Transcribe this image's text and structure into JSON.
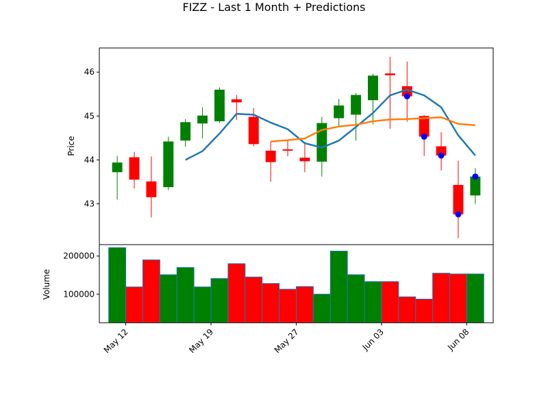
{
  "title": "FIZZ - Last 1 Month + Predictions",
  "chart_data": [
    {
      "type": "candlestick",
      "ylabel": "Price",
      "ylim": [
        42.07,
        46.55
      ],
      "yticks": [
        43,
        44,
        45,
        46
      ],
      "grid": false,
      "colors": {
        "up": "#008000",
        "down": "#ff0000"
      },
      "x": [
        0,
        1,
        2,
        3,
        4,
        5,
        6,
        7,
        8,
        9,
        10,
        11,
        12,
        13,
        14,
        15,
        16,
        17,
        18,
        19,
        20,
        21
      ],
      "ohlc": [
        {
          "o": 43.72,
          "h": 44.09,
          "l": 43.1,
          "c": 43.94
        },
        {
          "o": 44.06,
          "h": 44.18,
          "l": 43.35,
          "c": 43.55
        },
        {
          "o": 43.51,
          "h": 44.08,
          "l": 42.69,
          "c": 43.15
        },
        {
          "o": 43.38,
          "h": 44.53,
          "l": 43.31,
          "c": 44.42
        },
        {
          "o": 44.44,
          "h": 44.93,
          "l": 44.3,
          "c": 44.86
        },
        {
          "o": 44.83,
          "h": 45.2,
          "l": 44.49,
          "c": 45.01
        },
        {
          "o": 44.88,
          "h": 45.65,
          "l": 44.84,
          "c": 45.6
        },
        {
          "o": 45.38,
          "h": 45.48,
          "l": 44.91,
          "c": 45.31
        },
        {
          "o": 44.98,
          "h": 45.18,
          "l": 44.31,
          "c": 44.36
        },
        {
          "o": 44.21,
          "h": 44.42,
          "l": 43.5,
          "c": 43.95
        },
        {
          "o": 44.24,
          "h": 44.45,
          "l": 44.08,
          "c": 44.21
        },
        {
          "o": 44.05,
          "h": 44.38,
          "l": 43.72,
          "c": 43.97
        },
        {
          "o": 43.96,
          "h": 44.98,
          "l": 43.62,
          "c": 44.84
        },
        {
          "o": 44.95,
          "h": 45.39,
          "l": 44.77,
          "c": 45.24
        },
        {
          "o": 45.03,
          "h": 45.52,
          "l": 44.44,
          "c": 45.48
        },
        {
          "o": 45.36,
          "h": 45.96,
          "l": 44.81,
          "c": 45.92
        },
        {
          "o": 45.97,
          "h": 46.35,
          "l": 44.71,
          "c": 45.93
        },
        {
          "o": 45.68,
          "h": 46.24,
          "l": 44.87,
          "c": 45.45
        },
        {
          "o": 45.0,
          "h": 45.02,
          "l": 44.09,
          "c": 44.53
        },
        {
          "o": 44.31,
          "h": 44.63,
          "l": 43.76,
          "c": 44.1
        },
        {
          "o": 43.43,
          "h": 43.98,
          "l": 42.22,
          "c": 42.76
        },
        {
          "o": 43.19,
          "h": 43.81,
          "l": 43.0,
          "c": 43.62
        }
      ],
      "ma_short": {
        "color": "#1f77b4",
        "values": [
          null,
          null,
          null,
          null,
          44.0,
          44.2,
          44.6,
          45.05,
          45.03,
          44.85,
          44.7,
          44.38,
          44.28,
          44.44,
          44.75,
          45.07,
          45.47,
          45.6,
          45.47,
          45.2,
          44.56,
          44.1
        ]
      },
      "ma_long": {
        "color": "#ff7f0e",
        "values": [
          null,
          null,
          null,
          null,
          null,
          null,
          null,
          null,
          null,
          44.42,
          44.45,
          44.49,
          44.68,
          44.76,
          44.8,
          44.88,
          44.92,
          44.93,
          44.95,
          44.97,
          44.82,
          44.79
        ]
      },
      "prediction_points": {
        "color": "#0000ff",
        "points": [
          {
            "x": 17,
            "y": 45.45
          },
          {
            "x": 18,
            "y": 44.53
          },
          {
            "x": 19,
            "y": 44.1
          },
          {
            "x": 20,
            "y": 42.76
          },
          {
            "x": 21,
            "y": 43.62
          }
        ]
      }
    },
    {
      "type": "bar",
      "ylabel": "Volume",
      "ylim": [
        25000,
        230000
      ],
      "yticks": [
        100000,
        200000
      ],
      "edge_color": "#1f77b4",
      "values": [
        222000,
        119000,
        190000,
        151000,
        170000,
        119000,
        141000,
        180000,
        145000,
        128000,
        113000,
        120000,
        100000,
        213000,
        151000,
        133000,
        133000,
        93000,
        87000,
        155000,
        153000,
        153000
      ],
      "colors": [
        "green",
        "red",
        "red",
        "green",
        "green",
        "green",
        "green",
        "red",
        "red",
        "red",
        "red",
        "red",
        "green",
        "green",
        "green",
        "green",
        "red",
        "red",
        "red",
        "red",
        "red",
        "green"
      ],
      "xticks": [
        {
          "x": 0.5,
          "label": "May 12"
        },
        {
          "x": 5.5,
          "label": "May 19"
        },
        {
          "x": 10.5,
          "label": "May 27"
        },
        {
          "x": 15.5,
          "label": "Jun 03"
        },
        {
          "x": 20.5,
          "label": "Jun 08"
        }
      ]
    }
  ]
}
